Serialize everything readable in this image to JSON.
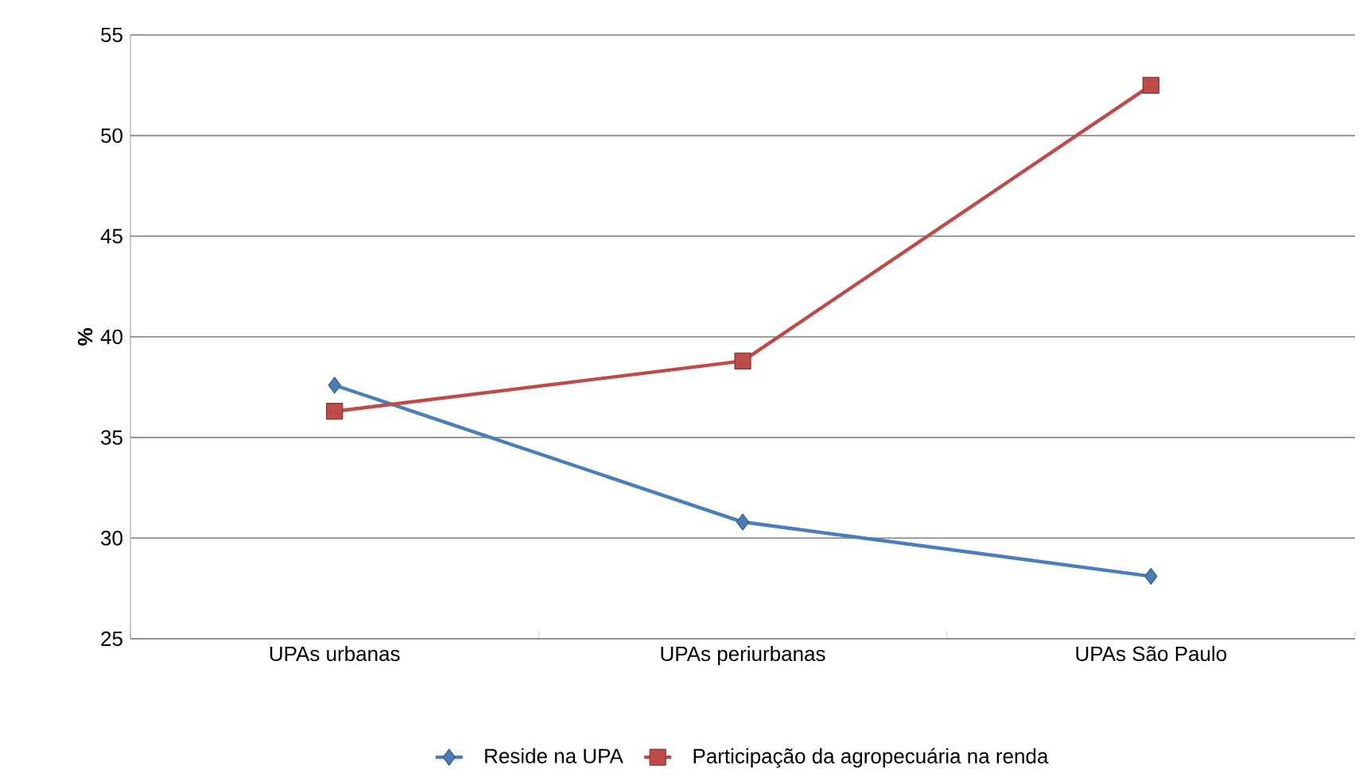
{
  "chart_data": {
    "type": "line",
    "ylabel": "%",
    "categories": [
      "UPAs urbanas",
      "UPAs periurbanas",
      "UPAs São Paulo"
    ],
    "series": [
      {
        "name": "Reside na UPA",
        "color": "#4a7ebb",
        "marker": "diamond",
        "values": [
          37.6,
          30.8,
          28.1
        ]
      },
      {
        "name": "Participação da agropecuária na renda",
        "color": "#be4b48",
        "marker": "square",
        "values": [
          36.3,
          38.8,
          52.5
        ]
      }
    ],
    "ylim": [
      25,
      55
    ],
    "yticks": [
      25,
      30,
      35,
      40,
      45,
      50,
      55
    ],
    "grid": "y",
    "legend": "bottom"
  }
}
